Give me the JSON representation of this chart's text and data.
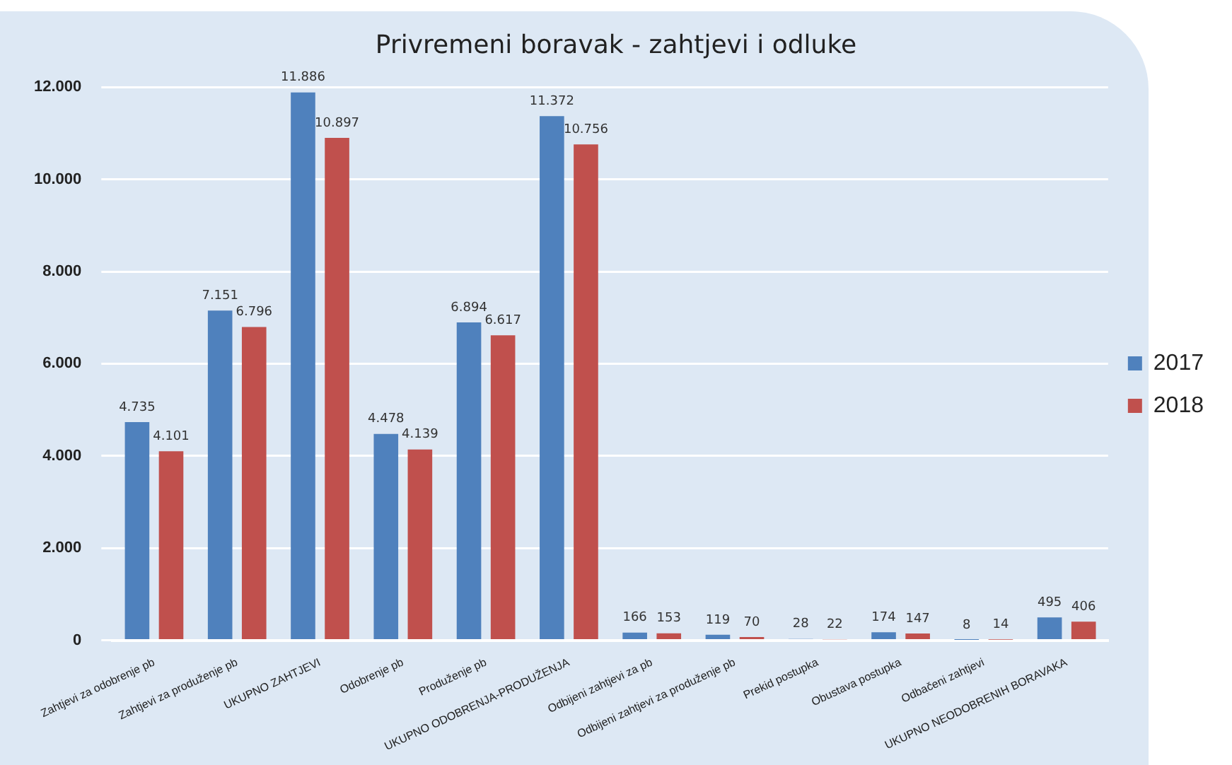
{
  "chart_data": {
    "type": "bar",
    "title": "Privremeni boravak - zahtjevi i odluke",
    "categories": [
      "Zahtjevi za odobrenje pb",
      "Zahtjevi za produženje pb",
      "UKUPNO ZAHTJEVI",
      "Odobrenje pb",
      "Produženje pb",
      "UKUPNO ODOBRENJA-PRODUŽENJA",
      "Odbijeni zahtjevi za pb",
      "Odbijeni zahtjevi za produženje pb",
      "Prekid postupka",
      "Obustava postupka",
      "Odbačeni zahtjevi",
      "UKUPNO NEODOBRENIH BORAVAKA"
    ],
    "series": [
      {
        "name": "2017",
        "color": "#4f81bd",
        "values": [
          4735,
          7151,
          11886,
          4478,
          6894,
          11372,
          166,
          119,
          28,
          174,
          8,
          495
        ],
        "value_labels": [
          "4.735",
          "7.151",
          "11.886",
          "4.478",
          "6.894",
          "11.372",
          "166",
          "119",
          "28",
          "174",
          "8",
          "495"
        ]
      },
      {
        "name": "2018",
        "color": "#c0504d",
        "values": [
          4101,
          6796,
          10897,
          4139,
          6617,
          10756,
          153,
          70,
          22,
          147,
          14,
          406
        ],
        "value_labels": [
          "4.101",
          "6.796",
          "10.897",
          "4.139",
          "6.617",
          "10.756",
          "153",
          "70",
          "22",
          "147",
          "14",
          "406"
        ]
      }
    ],
    "ylim": [
      0,
      12000
    ],
    "yticks": [
      {
        "value": 0,
        "label": "0"
      },
      {
        "value": 2000,
        "label": "2.000"
      },
      {
        "value": 4000,
        "label": "4.000"
      },
      {
        "value": 6000,
        "label": "6.000"
      },
      {
        "value": 8000,
        "label": "8.000"
      },
      {
        "value": 10000,
        "label": "10.000"
      },
      {
        "value": 12000,
        "label": "12.000"
      }
    ],
    "grid": "y",
    "legend": "right"
  }
}
